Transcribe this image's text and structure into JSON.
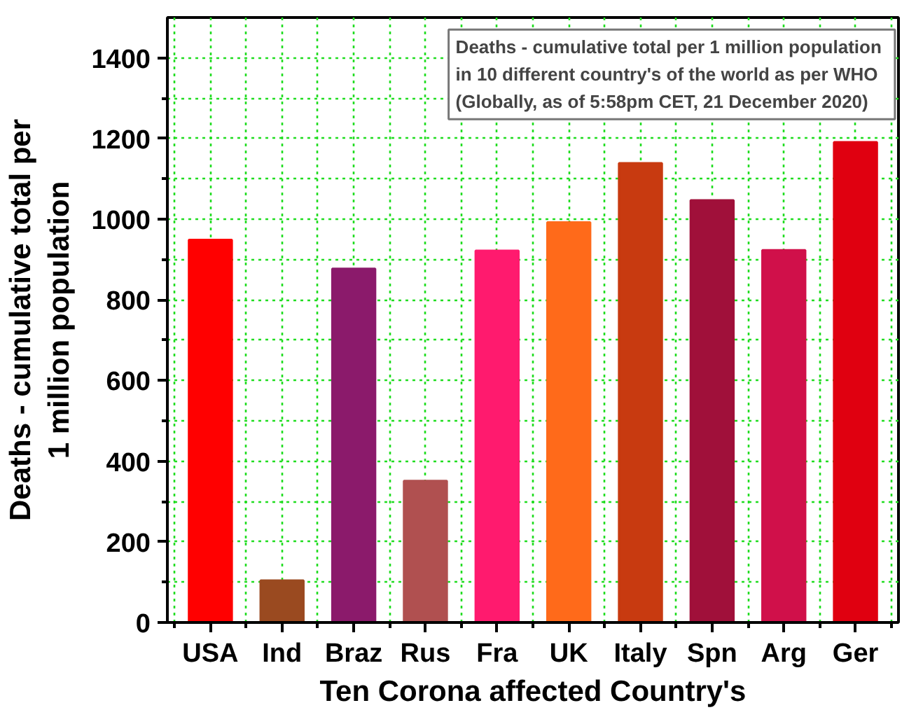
{
  "chart_data": {
    "type": "bar",
    "title": "Deaths - cumulative total per 1 million population\nin 10  different  country's of the world as per WHO\n(Globally, as of 5:58pm CET, 21 December 2020)",
    "xlabel": "Ten Corona affected Country's",
    "ylabel": "Deaths - cumulative total per\n1 million population",
    "categories": [
      "USA",
      "Ind",
      "Braz",
      "Rus",
      "Fra",
      "UK",
      "Italy",
      "Spn",
      "Arg",
      "Ger"
    ],
    "values": [
      949,
      104,
      877,
      351,
      922,
      992,
      1139,
      1047,
      923,
      1191
    ],
    "colors": [
      "#ff0000",
      "#9a4a20",
      "#8b1a6b",
      "#b05050",
      "#ff1a6e",
      "#ff6a1a",
      "#c83a10",
      "#a0103a",
      "#d0104a",
      "#e00010"
    ],
    "ylim": [
      0,
      1500
    ],
    "yticks": [
      0,
      200,
      400,
      600,
      800,
      1000,
      1200,
      1400
    ],
    "grid": true
  }
}
